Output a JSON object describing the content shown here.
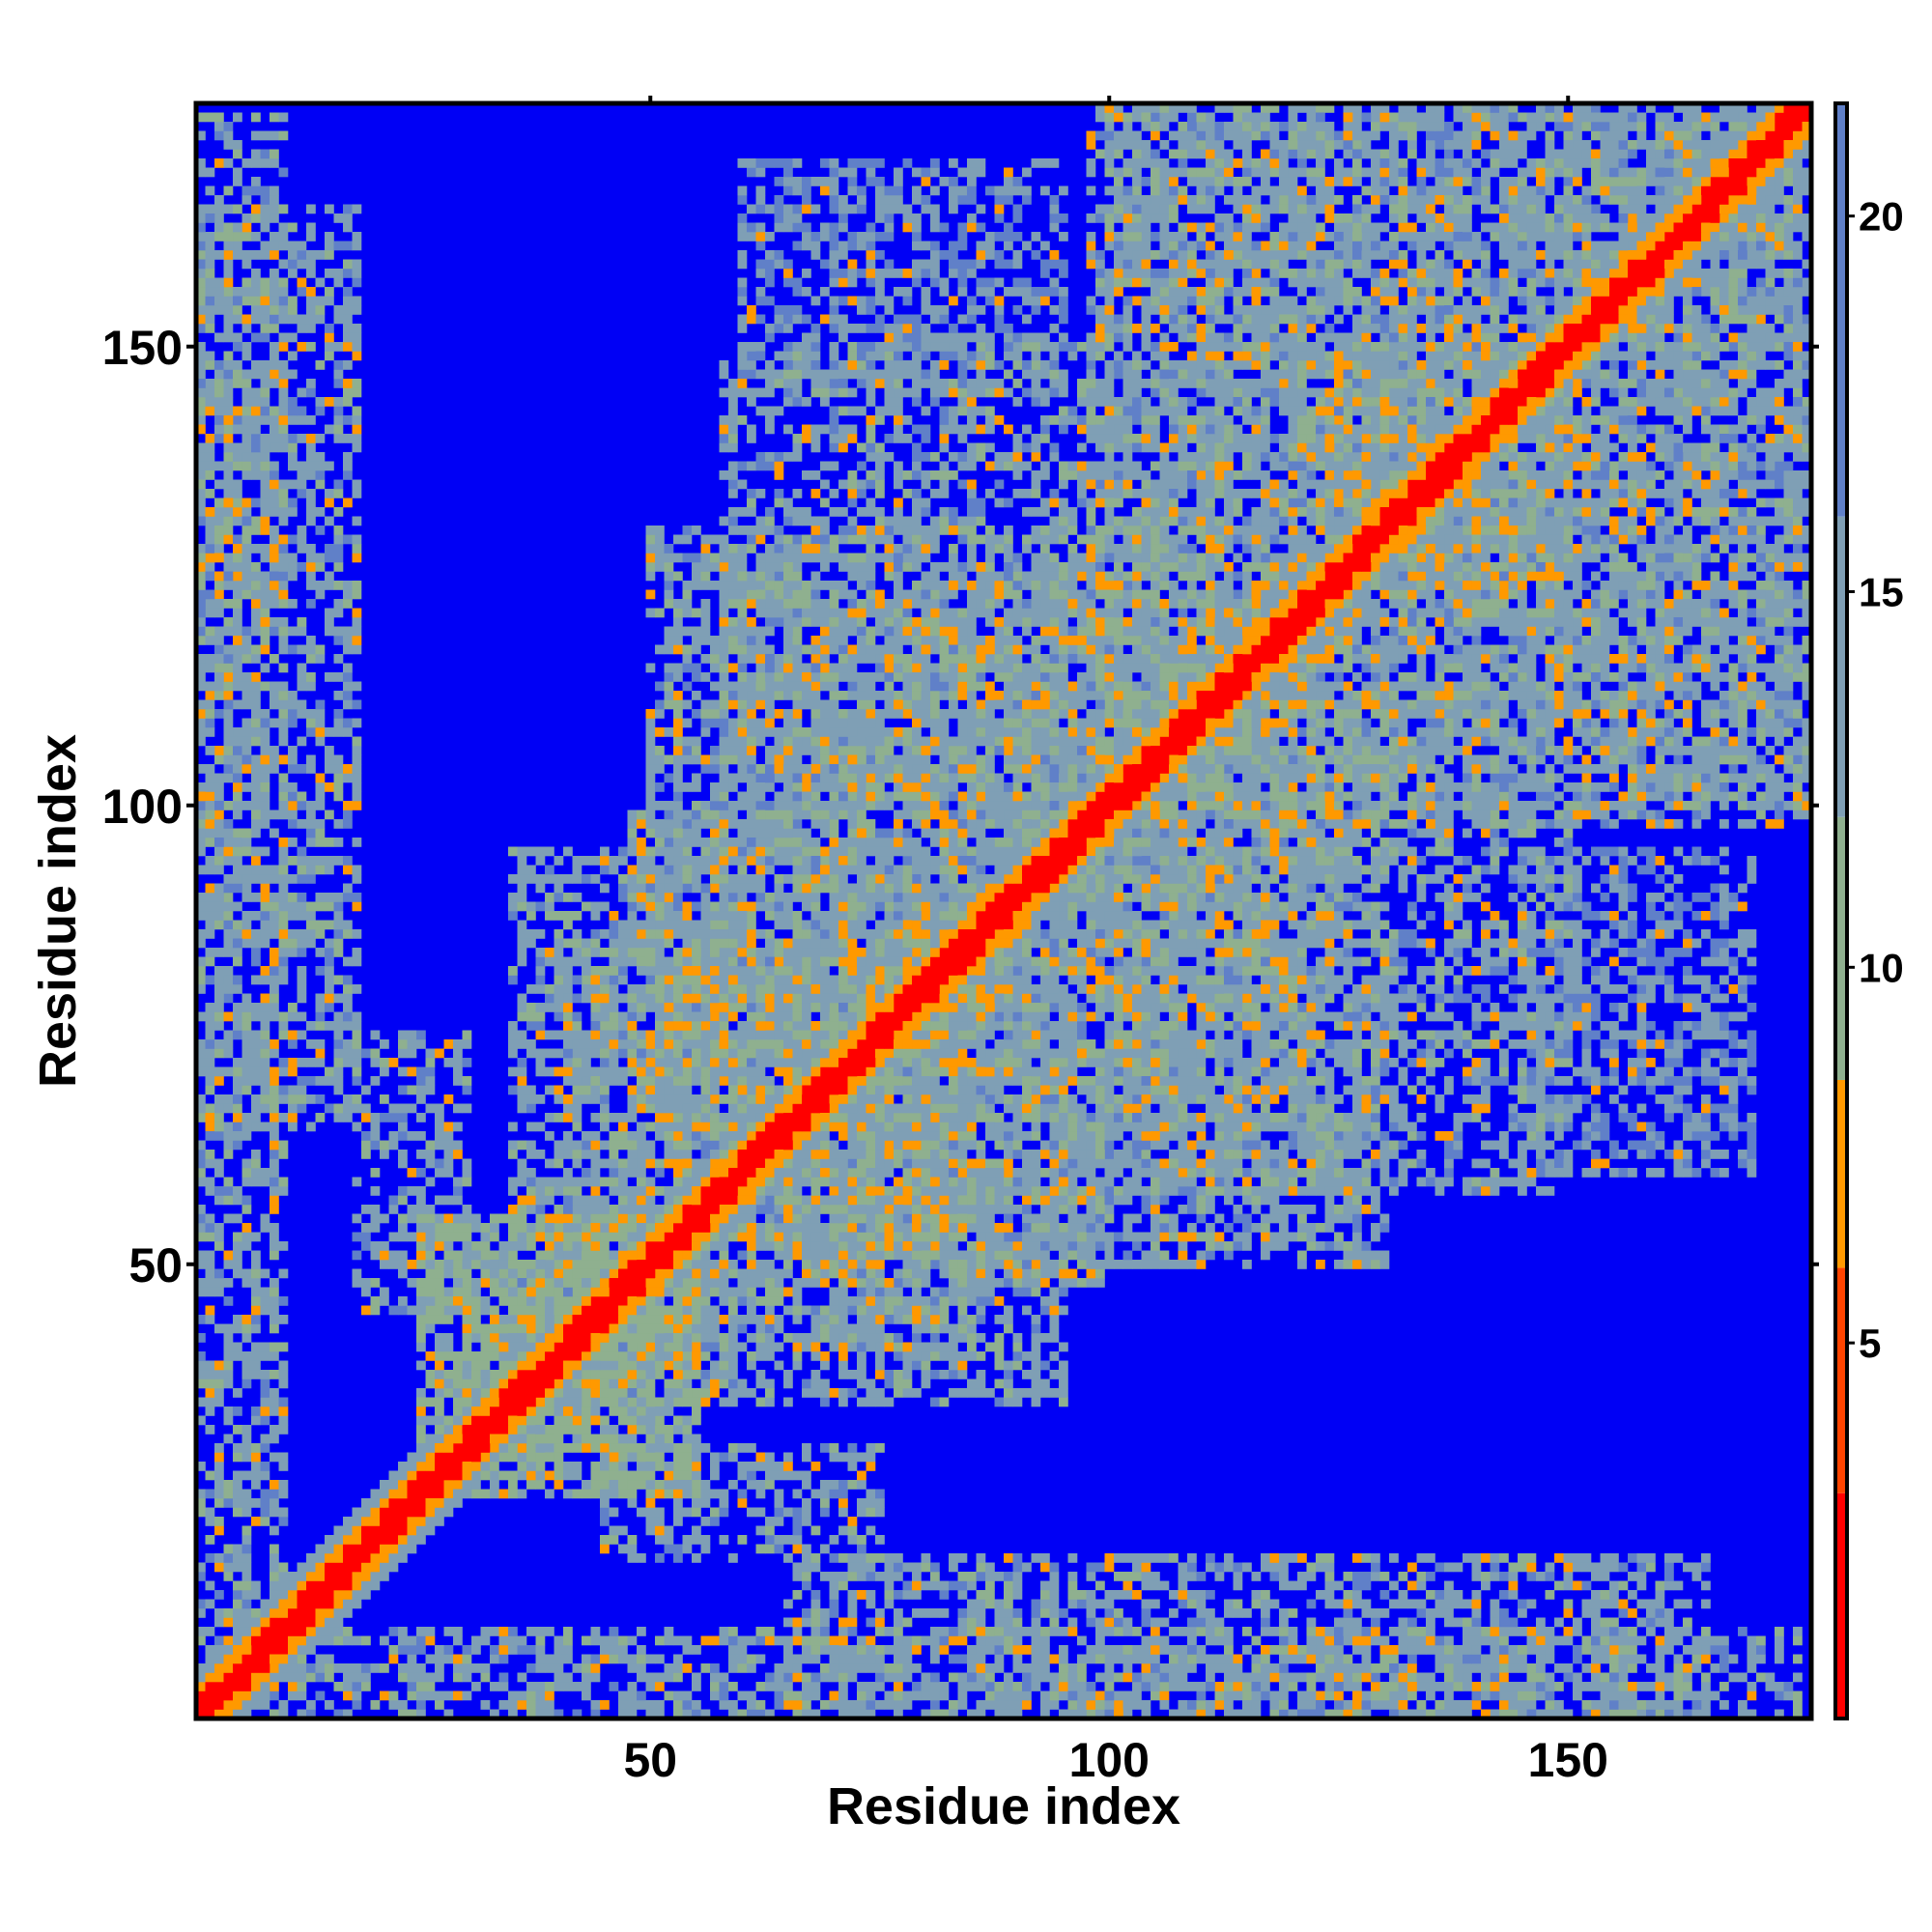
{
  "chart_data": {
    "type": "heatmap",
    "title": "",
    "xlabel": "Residue index",
    "ylabel": "Residue index",
    "xlim": [
      1,
      176
    ],
    "ylim": [
      1,
      176
    ],
    "x_ticks": [
      50,
      100,
      150
    ],
    "y_ticks": [
      50,
      100,
      150
    ],
    "colorbar": {
      "range": [
        0,
        21.5
      ],
      "ticks": [
        5,
        10,
        15,
        20
      ],
      "colors": [
        {
          "from": 0,
          "to": 3.0,
          "color": "#ff0000"
        },
        {
          "from": 3.0,
          "to": 6.0,
          "color": "#ff4400"
        },
        {
          "from": 6.0,
          "to": 8.5,
          "color": "#ff9900"
        },
        {
          "from": 8.5,
          "to": 12.0,
          "color": "#8fb08f"
        },
        {
          "from": 12.0,
          "to": 16.0,
          "color": "#7f9fb5"
        },
        {
          "from": 16.0,
          "to": 21.5,
          "color": "#6080c8"
        }
      ],
      "background_color": "#0000f5"
    },
    "diagonal_band": {
      "from_residue": 1,
      "to_residue": 176,
      "core_value": 2,
      "near_value": 7,
      "shoulder_value": 13
    },
    "contact_regions": [
      {
        "x": [
          65,
          165
        ],
        "y": [
          1,
          18
        ],
        "value": 14
      },
      {
        "x": [
          8,
          175
        ],
        "y": [
          0,
          10
        ],
        "value": 14
      },
      {
        "x": [
          25,
          55
        ],
        "y": [
          25,
          55
        ],
        "value": 12
      },
      {
        "x": [
          35,
          85
        ],
        "y": [
          40,
          95
        ],
        "value": 14
      },
      {
        "x": [
          45,
          75
        ],
        "y": [
          18,
          30
        ],
        "value": 14
      },
      {
        "x": [
          60,
          100
        ],
        "y": [
          48,
          60
        ],
        "value": 14
      },
      {
        "x": [
          95,
          150
        ],
        "y": [
          58,
          100
        ],
        "value": 14
      },
      {
        "x": [
          50,
          120
        ],
        "y": [
          65,
          130
        ],
        "value": 14
      },
      {
        "x": [
          100,
          176
        ],
        "y": [
          98,
          140
        ],
        "value": 14
      },
      {
        "x": [
          100,
          175
        ],
        "y": [
          140,
          176
        ],
        "value": 14
      },
      {
        "x": [
          60,
          95
        ],
        "y": [
          145,
          170
        ],
        "value": 16
      },
      {
        "x": [
          120,
          150
        ],
        "y": [
          125,
          150
        ],
        "value": 14
      }
    ]
  }
}
